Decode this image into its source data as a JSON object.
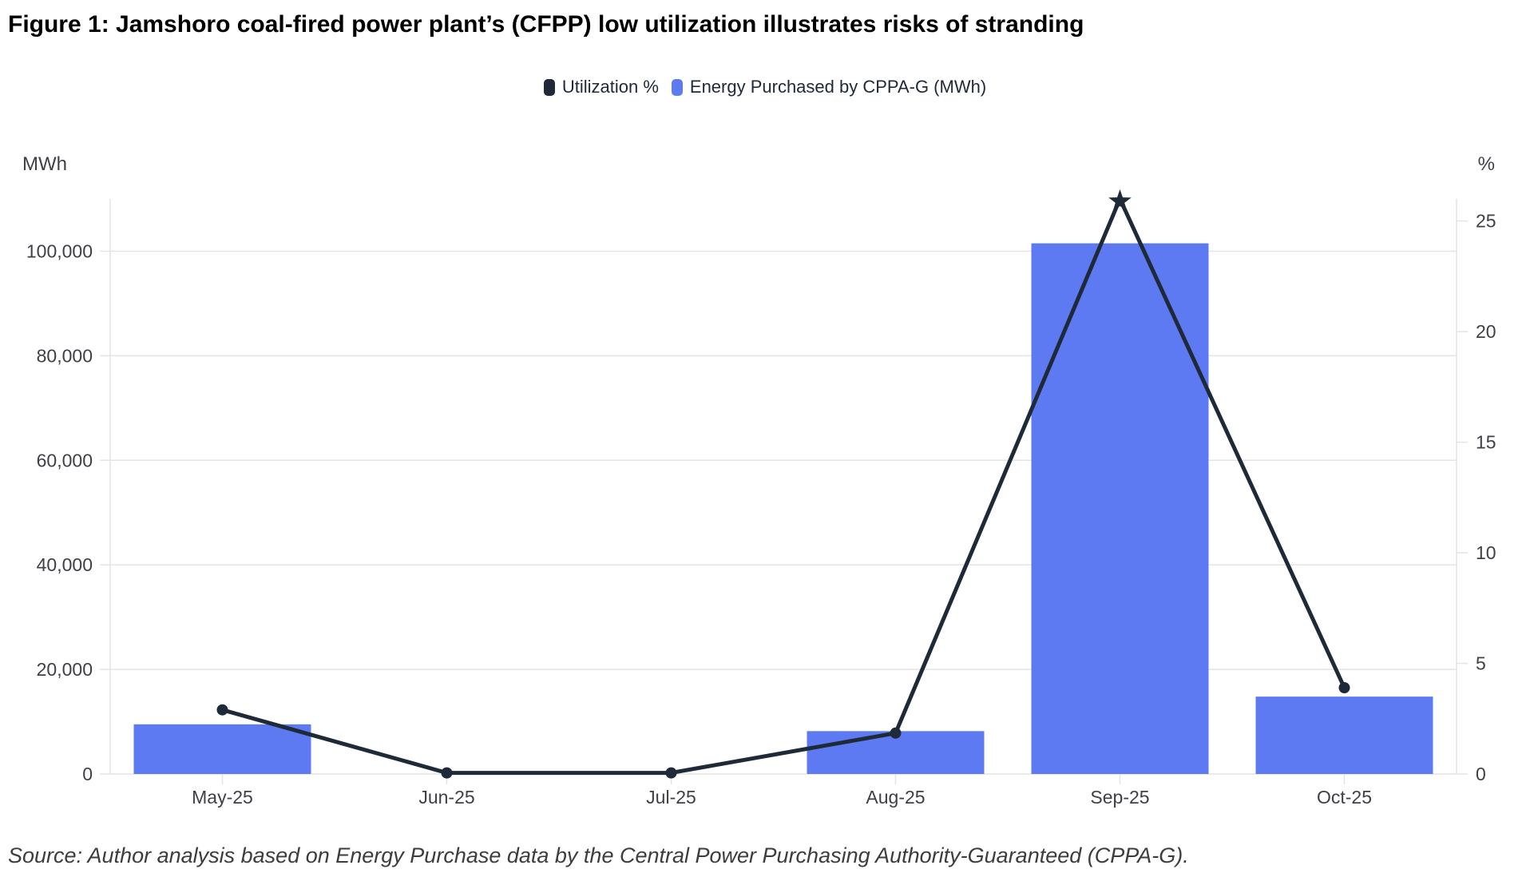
{
  "title": "Figure 1: Jamshoro coal-fired power plant’s (CFPP) low utilization illustrates risks of stranding",
  "source_note": "Source: Author analysis based on Energy Purchase data by the Central Power Purchasing Authority-Guaranteed (CPPA-G).",
  "chart_data": {
    "type": "bar+line dual-axis combo",
    "categories": [
      "May-25",
      "Jun-25",
      "Jul-25",
      "Aug-25",
      "Sep-25",
      "Oct-25"
    ],
    "series": [
      {
        "name": "Energy Purchased by CPPA-G (MWh)",
        "type": "bar",
        "axis": "left",
        "color": "#5e7af2",
        "values": [
          9500,
          0,
          0,
          8200,
          101500,
          14800
        ]
      },
      {
        "name": "Utilization %",
        "type": "line",
        "axis": "right",
        "color": "#1f2a38",
        "values": [
          2.9,
          0.05,
          0.05,
          1.85,
          26,
          3.9
        ],
        "marker": "circle",
        "peak_marker": "star",
        "peak_index": 4
      }
    ],
    "left_axis": {
      "unit": "MWh",
      "min": 0,
      "max": 110000,
      "ticks": [
        0,
        20000,
        40000,
        60000,
        80000,
        100000
      ],
      "tick_labels": [
        "0",
        "20,000",
        "40,000",
        "60,000",
        "80,000",
        "100,000"
      ]
    },
    "right_axis": {
      "unit": "%",
      "min": 0,
      "max": 26,
      "ticks": [
        0,
        5,
        10,
        15,
        20,
        25
      ],
      "tick_labels": [
        "0",
        "5",
        "10",
        "15",
        "20",
        "25"
      ]
    },
    "legend_position": "top-center",
    "grid": "horizontal-only",
    "grid_color": "#e4e4e7",
    "background": "#ffffff"
  }
}
